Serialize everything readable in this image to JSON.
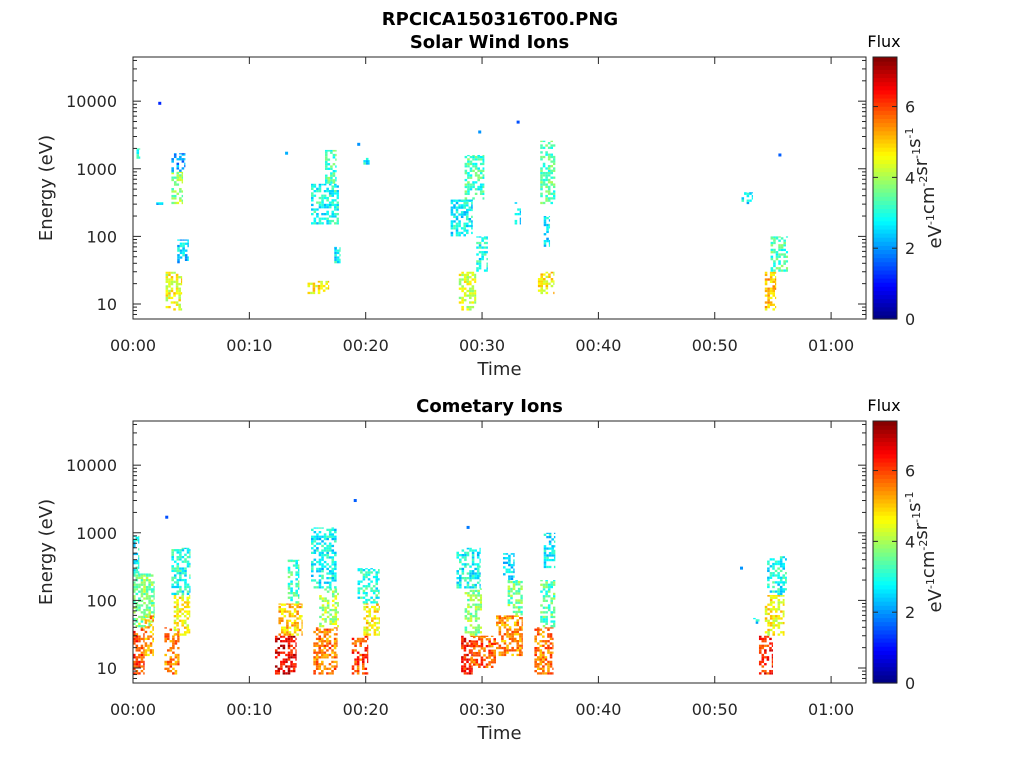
{
  "figure": {
    "suptitle": "RPCICA150316T00.PNG",
    "colormap": "jet",
    "colors": {
      "axis": "#262626",
      "background": "#ffffff",
      "title": "#000000"
    }
  },
  "chart_data": [
    {
      "type": "heatmap",
      "title": "Solar Wind Ions",
      "xlabel": "Time",
      "ylabel": "Energy (eV)",
      "x_unit": "minutes after 00:00",
      "xlim": [
        0,
        63
      ],
      "xticks": [
        0,
        10,
        20,
        30,
        40,
        50,
        60
      ],
      "xticklabels": [
        "00:00",
        "00:10",
        "00:20",
        "00:30",
        "00:40",
        "00:50",
        "01:00"
      ],
      "yscale": "log",
      "ylim": [
        6,
        45000
      ],
      "yticks": [
        10,
        100,
        1000,
        10000
      ],
      "yticklabels": [
        "10",
        "100",
        "1000",
        "10000"
      ],
      "colorbar": {
        "title": "Flux",
        "label": "eV-1cm-2sr-1s-1",
        "range": [
          0,
          7.4
        ],
        "ticks": [
          0,
          2,
          4,
          6
        ],
        "ticklabels": [
          "0",
          "2",
          "4",
          "6"
        ]
      },
      "clusters": [
        {
          "t_start": 0.3,
          "t_end": 0.6,
          "e_low": 1300,
          "e_high": 2000,
          "flux": 3.0
        },
        {
          "t_start": 2.0,
          "t_end": 2.6,
          "e_low": 270,
          "e_high": 320,
          "flux": 2.5
        },
        {
          "t_start": 3.3,
          "t_end": 4.3,
          "e_low": 300,
          "e_high": 900,
          "flux": 3.8
        },
        {
          "t_start": 3.3,
          "t_end": 4.5,
          "e_low": 900,
          "e_high": 1700,
          "flux": 2.0
        },
        {
          "t_start": 3.8,
          "t_end": 4.8,
          "e_low": 40,
          "e_high": 90,
          "flux": 2.5
        },
        {
          "t_start": 2.8,
          "t_end": 4.2,
          "e_low": 8,
          "e_high": 30,
          "flux": 4.5
        },
        {
          "t_start": 15.0,
          "t_end": 16.8,
          "e_low": 14,
          "e_high": 22,
          "flux": 4.6
        },
        {
          "t_start": 15.3,
          "t_end": 17.7,
          "e_low": 150,
          "e_high": 600,
          "flux": 2.9
        },
        {
          "t_start": 16.5,
          "t_end": 17.5,
          "e_low": 600,
          "e_high": 1900,
          "flux": 3.3
        },
        {
          "t_start": 17.3,
          "t_end": 17.8,
          "e_low": 40,
          "e_high": 70,
          "flux": 2.7
        },
        {
          "t_start": 19.8,
          "t_end": 20.3,
          "e_low": 1150,
          "e_high": 1450,
          "flux": 2.8
        },
        {
          "t_start": 27.3,
          "t_end": 29.2,
          "e_low": 100,
          "e_high": 350,
          "flux": 2.8
        },
        {
          "t_start": 28.5,
          "t_end": 30.2,
          "e_low": 350,
          "e_high": 1600,
          "flux": 3.2
        },
        {
          "t_start": 28.0,
          "t_end": 29.5,
          "e_low": 8,
          "e_high": 30,
          "flux": 4.3
        },
        {
          "t_start": 29.5,
          "t_end": 30.5,
          "e_low": 30,
          "e_high": 100,
          "flux": 3.0
        },
        {
          "t_start": 32.8,
          "t_end": 33.3,
          "e_low": 150,
          "e_high": 320,
          "flux": 2.6
        },
        {
          "t_start": 34.8,
          "t_end": 36.2,
          "e_low": 14,
          "e_high": 30,
          "flux": 4.7
        },
        {
          "t_start": 35.0,
          "t_end": 36.3,
          "e_low": 300,
          "e_high": 2600,
          "flux": 3.4
        },
        {
          "t_start": 35.3,
          "t_end": 35.8,
          "e_low": 70,
          "e_high": 200,
          "flux": 2.7
        },
        {
          "t_start": 52.3,
          "t_end": 53.2,
          "e_low": 300,
          "e_high": 450,
          "flux": 2.7
        },
        {
          "t_start": 54.3,
          "t_end": 55.2,
          "e_low": 8,
          "e_high": 30,
          "flux": 5.1
        },
        {
          "t_start": 54.8,
          "t_end": 56.3,
          "e_low": 30,
          "e_high": 100,
          "flux": 3.3
        }
      ],
      "isolated_points": [
        {
          "t": 2.3,
          "e": 9300,
          "flux": 1.2
        },
        {
          "t": 13.2,
          "e": 1700,
          "flux": 2.2
        },
        {
          "t": 19.4,
          "e": 2300,
          "flux": 2.0
        },
        {
          "t": 29.8,
          "e": 3500,
          "flux": 2.0
        },
        {
          "t": 33.1,
          "e": 4900,
          "flux": 1.5
        },
        {
          "t": 55.6,
          "e": 1600,
          "flux": 1.6
        }
      ]
    },
    {
      "type": "heatmap",
      "title": "Cometary Ions",
      "xlabel": "Time",
      "ylabel": "Energy (eV)",
      "x_unit": "minutes after 00:00",
      "xlim": [
        0,
        63
      ],
      "xticks": [
        0,
        10,
        20,
        30,
        40,
        50,
        60
      ],
      "xticklabels": [
        "00:00",
        "00:10",
        "00:20",
        "00:30",
        "00:40",
        "00:50",
        "01:00"
      ],
      "yscale": "log",
      "ylim": [
        6,
        45000
      ],
      "yticks": [
        10,
        100,
        1000,
        10000
      ],
      "yticklabels": [
        "10",
        "100",
        "1000",
        "10000"
      ],
      "colorbar": {
        "title": "Flux",
        "label": "eV-1cm-2sr-1s-1",
        "range": [
          0,
          7.4
        ],
        "ticks": [
          0,
          2,
          4,
          6
        ],
        "ticklabels": [
          "0",
          "2",
          "4",
          "6"
        ]
      },
      "clusters": [
        {
          "t_start": 0.0,
          "t_end": 1.0,
          "e_low": 8,
          "e_high": 40,
          "flux": 6.0
        },
        {
          "t_start": 0.0,
          "t_end": 1.8,
          "e_low": 40,
          "e_high": 250,
          "flux": 3.7
        },
        {
          "t_start": 0.0,
          "t_end": 0.5,
          "e_low": 250,
          "e_high": 900,
          "flux": 2.8
        },
        {
          "t_start": 1.0,
          "t_end": 1.8,
          "e_low": 15,
          "e_high": 60,
          "flux": 5.2
        },
        {
          "t_start": 2.7,
          "t_end": 4.0,
          "e_low": 8,
          "e_high": 40,
          "flux": 5.6
        },
        {
          "t_start": 3.5,
          "t_end": 4.9,
          "e_low": 30,
          "e_high": 120,
          "flux": 4.6
        },
        {
          "t_start": 3.3,
          "t_end": 4.9,
          "e_low": 120,
          "e_high": 600,
          "flux": 3.0
        },
        {
          "t_start": 12.2,
          "t_end": 14.0,
          "e_low": 8,
          "e_high": 30,
          "flux": 6.6
        },
        {
          "t_start": 12.5,
          "t_end": 14.5,
          "e_low": 30,
          "e_high": 90,
          "flux": 5.0
        },
        {
          "t_start": 13.3,
          "t_end": 14.3,
          "e_low": 90,
          "e_high": 400,
          "flux": 3.2
        },
        {
          "t_start": 15.5,
          "t_end": 17.5,
          "e_low": 8,
          "e_high": 40,
          "flux": 5.6
        },
        {
          "t_start": 16.0,
          "t_end": 17.7,
          "e_low": 40,
          "e_high": 150,
          "flux": 4.0
        },
        {
          "t_start": 15.3,
          "t_end": 17.5,
          "e_low": 150,
          "e_high": 1200,
          "flux": 2.8
        },
        {
          "t_start": 18.8,
          "t_end": 20.2,
          "e_low": 8,
          "e_high": 30,
          "flux": 6.0
        },
        {
          "t_start": 19.8,
          "t_end": 21.2,
          "e_low": 30,
          "e_high": 90,
          "flux": 4.8
        },
        {
          "t_start": 19.3,
          "t_end": 21.2,
          "e_low": 90,
          "e_high": 300,
          "flux": 3.0
        },
        {
          "t_start": 28.2,
          "t_end": 29.2,
          "e_low": 8,
          "e_high": 30,
          "flux": 6.3
        },
        {
          "t_start": 29.0,
          "t_end": 31.2,
          "e_low": 10,
          "e_high": 30,
          "flux": 5.8
        },
        {
          "t_start": 28.5,
          "t_end": 30.0,
          "e_low": 30,
          "e_high": 150,
          "flux": 3.8
        },
        {
          "t_start": 27.8,
          "t_end": 29.8,
          "e_low": 150,
          "e_high": 600,
          "flux": 2.8
        },
        {
          "t_start": 31.2,
          "t_end": 33.5,
          "e_low": 15,
          "e_high": 60,
          "flux": 5.4
        },
        {
          "t_start": 32.2,
          "t_end": 33.5,
          "e_low": 60,
          "e_high": 200,
          "flux": 3.6
        },
        {
          "t_start": 31.8,
          "t_end": 32.8,
          "e_low": 200,
          "e_high": 500,
          "flux": 2.6
        },
        {
          "t_start": 34.5,
          "t_end": 36.1,
          "e_low": 8,
          "e_high": 40,
          "flux": 5.6
        },
        {
          "t_start": 35.0,
          "t_end": 36.3,
          "e_low": 40,
          "e_high": 200,
          "flux": 3.4
        },
        {
          "t_start": 35.3,
          "t_end": 36.3,
          "e_low": 300,
          "e_high": 1000,
          "flux": 2.7
        },
        {
          "t_start": 53.8,
          "t_end": 55.0,
          "e_low": 8,
          "e_high": 30,
          "flux": 6.2
        },
        {
          "t_start": 54.3,
          "t_end": 56.0,
          "e_low": 30,
          "e_high": 120,
          "flux": 4.6
        },
        {
          "t_start": 54.5,
          "t_end": 56.2,
          "e_low": 120,
          "e_high": 450,
          "flux": 2.9
        },
        {
          "t_start": 53.3,
          "t_end": 53.8,
          "e_low": 45,
          "e_high": 55,
          "flux": 2.6
        }
      ],
      "isolated_points": [
        {
          "t": 2.9,
          "e": 1700,
          "flux": 1.5
        },
        {
          "t": 19.1,
          "e": 3000,
          "flux": 1.6
        },
        {
          "t": 28.8,
          "e": 1200,
          "flux": 1.8
        },
        {
          "t": 52.3,
          "e": 300,
          "flux": 2.0
        }
      ]
    }
  ]
}
